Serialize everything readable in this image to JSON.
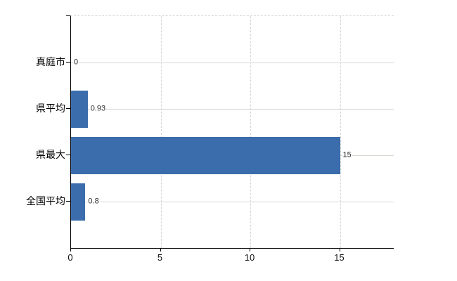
{
  "chart_data": {
    "type": "bar",
    "orientation": "horizontal",
    "title": "",
    "xlabel": "",
    "ylabel": "",
    "categories": [
      "真庭市",
      "県平均",
      "県最大",
      "全国平均"
    ],
    "values": [
      0,
      0.93,
      15,
      0.8
    ],
    "value_labels": [
      "0",
      "0.93",
      "15",
      "0.8"
    ],
    "x_ticks": [
      0,
      5,
      10,
      15
    ],
    "x_tick_labels": [
      "0",
      "5",
      "10",
      "15"
    ],
    "xlim": [
      0,
      18
    ],
    "grid": "horizontal solid, vertical dashed",
    "legend": "none",
    "bar_color": "#3b6cab"
  },
  "colors": {
    "bar": "#3b6cab",
    "axis": "#000000",
    "hgrid": "#d3d9d0",
    "vgrid": "#d5d5d9",
    "value_text": "#2b2b2b",
    "background": "#ffffff"
  }
}
